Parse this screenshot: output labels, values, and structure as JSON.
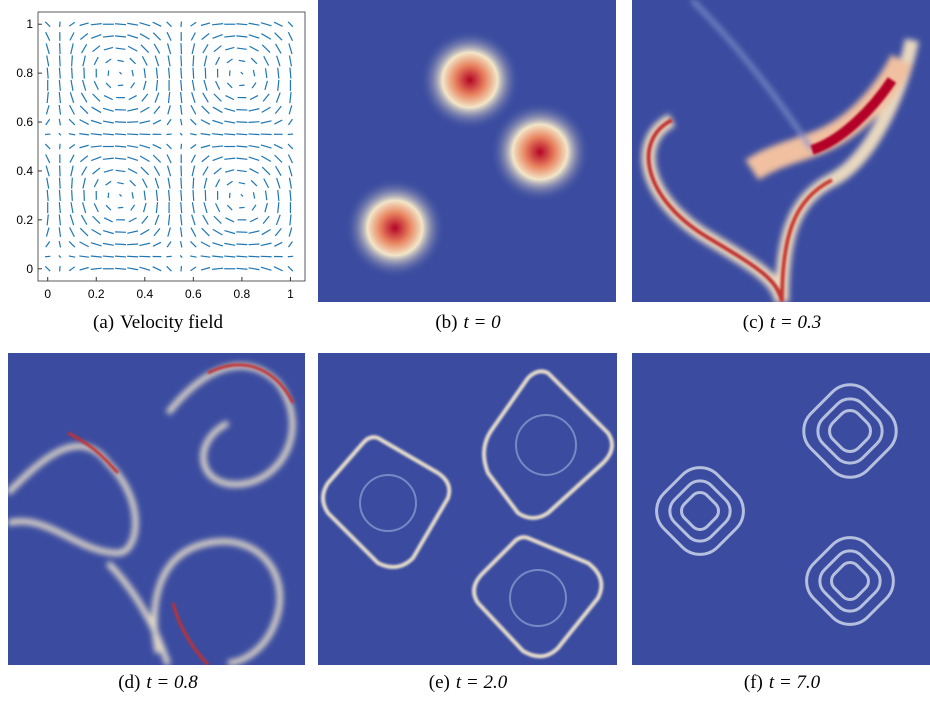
{
  "figure": {
    "panels": [
      {
        "label": "(a)",
        "caption": "Velocity field",
        "xlim": [
          -0.04,
          1.06
        ],
        "ylim": [
          -0.05,
          1.05
        ],
        "xticks": [
          0,
          0.2,
          0.4,
          0.6,
          0.8,
          1
        ],
        "yticks": [
          0,
          0.2,
          0.4,
          0.6,
          0.8,
          1
        ]
      },
      {
        "label": "(b)",
        "caption": "t = 0"
      },
      {
        "label": "(c)",
        "caption": "t = 0.3"
      },
      {
        "label": "(d)",
        "caption": "t = 0.8"
      },
      {
        "label": "(e)",
        "caption": "t = 2.0"
      },
      {
        "label": "(f)",
        "caption": "t = 7.0"
      }
    ]
  }
}
